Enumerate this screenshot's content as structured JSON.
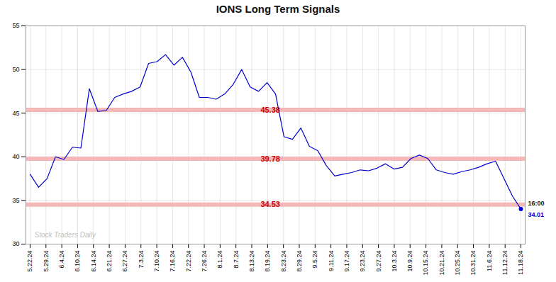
{
  "chart_data": {
    "type": "line",
    "title": "IONS Long Term Signals",
    "color": "#0000cc",
    "values": [
      38.0,
      36.5,
      37.5,
      40.0,
      39.7,
      41.1,
      41.0,
      47.8,
      45.2,
      45.3,
      46.8,
      47.2,
      47.5,
      48.0,
      50.7,
      50.9,
      51.7,
      50.5,
      51.4,
      49.7,
      46.8,
      46.8,
      46.6,
      47.2,
      48.3,
      50.0,
      48.0,
      47.5,
      48.5,
      47.2,
      42.3,
      42.0,
      43.3,
      41.2,
      40.7,
      39.0,
      37.8,
      38.0,
      38.2,
      38.5,
      38.4,
      38.7,
      39.2,
      38.6,
      38.8,
      39.8,
      40.2,
      39.8,
      38.5,
      38.2,
      38.0,
      38.3,
      38.5,
      38.8,
      39.2,
      39.5,
      37.5,
      35.5,
      34.01
    ],
    "xlim": [
      -0.5,
      58.5
    ],
    "xticks": [
      {
        "value": 0,
        "label": "5.22.24"
      },
      {
        "value": 1.8709677419354838,
        "label": "5.29.24"
      },
      {
        "value": 3.7419354838709675,
        "label": "6.4.24"
      },
      {
        "value": 5.612903225806451,
        "label": "6.10.24"
      },
      {
        "value": 7.483870967741935,
        "label": "6.14.24"
      },
      {
        "value": 9.35483870967742,
        "label": "6.21.24"
      },
      {
        "value": 11.225806451612902,
        "label": "6.27.24"
      },
      {
        "value": 13.096774193548386,
        "label": "7.3.24"
      },
      {
        "value": 14.96774193548387,
        "label": "7.10.24"
      },
      {
        "value": 16.838709677419356,
        "label": "7.16.24"
      },
      {
        "value": 18.70967741935484,
        "label": "7.22.24"
      },
      {
        "value": 20.580645161290324,
        "label": "7.26.24"
      },
      {
        "value": 22.451612903225804,
        "label": "8.1.24"
      },
      {
        "value": 24.32258064516129,
        "label": "8.7.24"
      },
      {
        "value": 26.193548387096772,
        "label": "8.13.24"
      },
      {
        "value": 28.064516129032256,
        "label": "8.19.24"
      },
      {
        "value": 29.93548387096774,
        "label": "8.23.24"
      },
      {
        "value": 31.806451612903224,
        "label": "8.29.24"
      },
      {
        "value": 33.67741935483871,
        "label": "9.5.24"
      },
      {
        "value": 35.54838709677419,
        "label": "9.11.24"
      },
      {
        "value": 37.41935483870968,
        "label": "9.17.24"
      },
      {
        "value": 39.29032258064516,
        "label": "9.23.24"
      },
      {
        "value": 41.16129032258064,
        "label": "9.27.24"
      },
      {
        "value": 43.03225806451613,
        "label": "10.3.24"
      },
      {
        "value": 44.903225806451616,
        "label": "10.9.24"
      },
      {
        "value": 46.774193548387096,
        "label": "10.15.24"
      },
      {
        "value": 48.645161290322584,
        "label": "10.21.24"
      },
      {
        "value": 50.516129032258064,
        "label": "10.25.24"
      },
      {
        "value": 52.38709677419355,
        "label": "10.31.24"
      },
      {
        "value": 54.25806451612903,
        "label": "11.6.24"
      },
      {
        "value": 56.12903225806451,
        "label": "11.12.24"
      },
      {
        "value": 58,
        "label": "11.18.24"
      }
    ],
    "ylim": [
      30,
      55
    ],
    "yticks": [
      30,
      35,
      40,
      45,
      50,
      55
    ],
    "grid": true,
    "hlines": [
      {
        "y": 45.38,
        "label": "45.38"
      },
      {
        "y": 39.78,
        "label": "39.78"
      },
      {
        "y": 34.53,
        "label": "34.53"
      }
    ],
    "hline_band_color": "#f5b8b8",
    "hline_text_color": "#cc0000",
    "watermark": "Stock Traders Daily",
    "last_point": {
      "value": 34.01,
      "time_label": "16:00",
      "price_label": "34.01"
    }
  }
}
